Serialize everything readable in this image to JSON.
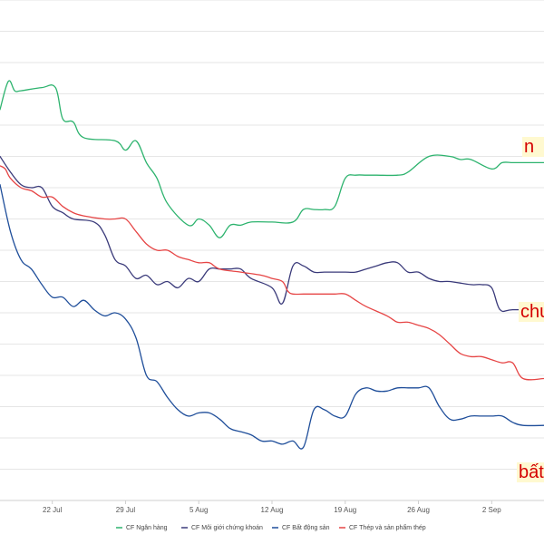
{
  "chart_data": {
    "type": "line",
    "x_tick_labels": [
      "22 Jul",
      "29 Jul",
      "5 Aug",
      "12 Aug",
      "19 Aug",
      "26 Aug",
      "2 Sep"
    ],
    "x_tick_days": [
      22,
      29,
      36,
      43,
      50,
      57,
      64
    ],
    "xlim": [
      17,
      69
    ],
    "ylim": [
      0,
      16
    ],
    "grid": true,
    "legend_position": "bottom",
    "series": [
      {
        "name": "CF Ngân hàng",
        "color": "#2db36e",
        "end_label": "n",
        "x": [
          17,
          17.8,
          18.4,
          19,
          21,
          22.3,
          23,
          24,
          25,
          28,
          29,
          30,
          31,
          32,
          33,
          35,
          36,
          37,
          38,
          39,
          40,
          41,
          43,
          45,
          46,
          47,
          48,
          49,
          50,
          51,
          52,
          53,
          55,
          56,
          58,
          60,
          61,
          62,
          64,
          65,
          66,
          67,
          69
        ],
        "y": [
          12.5,
          13.4,
          13.1,
          13.1,
          13.2,
          13.2,
          12.2,
          12.1,
          11.6,
          11.5,
          11.2,
          11.5,
          10.8,
          10.3,
          9.5,
          8.8,
          9.0,
          8.8,
          8.4,
          8.8,
          8.8,
          8.9,
          8.9,
          8.9,
          9.3,
          9.3,
          9.3,
          9.4,
          10.3,
          10.4,
          10.4,
          10.4,
          10.4,
          10.5,
          11.0,
          11.0,
          10.9,
          10.9,
          10.6,
          10.8,
          10.8,
          10.8,
          10.8
        ]
      },
      {
        "name": "CF Môi giới chứng khoán",
        "color": "#3a3a7a",
        "end_label": "chu",
        "x": [
          17,
          18,
          19,
          20,
          21,
          22,
          23,
          24,
          26,
          27,
          28,
          29,
          30,
          31,
          32,
          33,
          34,
          35,
          36,
          37,
          38,
          39,
          40,
          41,
          43,
          44,
          45,
          46,
          47,
          48,
          49,
          50,
          51,
          52,
          53,
          54,
          55,
          56,
          57,
          58,
          59,
          60,
          62,
          63,
          64,
          64.8,
          66,
          69
        ],
        "y": [
          11.0,
          10.5,
          10.1,
          10.0,
          10.0,
          9.4,
          9.2,
          9.0,
          8.9,
          8.5,
          7.7,
          7.5,
          7.1,
          7.2,
          6.9,
          7.0,
          6.8,
          7.1,
          7.0,
          7.4,
          7.4,
          7.4,
          7.4,
          7.1,
          6.8,
          6.3,
          7.5,
          7.5,
          7.3,
          7.3,
          7.3,
          7.3,
          7.3,
          7.4,
          7.5,
          7.6,
          7.6,
          7.3,
          7.3,
          7.1,
          7.0,
          7.0,
          6.9,
          6.9,
          6.8,
          6.1,
          6.1,
          6.1
        ]
      },
      {
        "name": "CF Bất động sản",
        "color": "#1f4e9a",
        "end_label": "bất",
        "x": [
          17,
          18,
          19,
          20,
          21,
          22,
          23,
          24,
          25,
          26,
          27,
          28,
          29,
          30,
          31,
          32,
          33,
          34,
          35,
          36,
          37,
          38,
          39,
          40,
          41,
          42,
          43,
          44,
          45,
          46,
          47,
          48,
          49,
          50,
          51,
          52,
          53,
          54,
          55,
          56,
          57,
          58,
          59,
          60,
          61,
          62,
          63,
          64,
          65,
          66,
          67,
          69
        ],
        "y": [
          10.1,
          8.6,
          7.7,
          7.4,
          6.9,
          6.5,
          6.5,
          6.2,
          6.4,
          6.1,
          5.9,
          6.0,
          5.8,
          5.2,
          4.0,
          3.8,
          3.3,
          2.9,
          2.7,
          2.8,
          2.8,
          2.6,
          2.3,
          2.2,
          2.1,
          1.9,
          1.9,
          1.8,
          1.9,
          1.7,
          2.9,
          2.9,
          2.7,
          2.7,
          3.4,
          3.6,
          3.5,
          3.5,
          3.6,
          3.6,
          3.6,
          3.6,
          3.0,
          2.6,
          2.6,
          2.7,
          2.7,
          2.7,
          2.7,
          2.5,
          2.4,
          2.4
        ]
      },
      {
        "name": "CF Thép và sản phẩm thép",
        "color": "#e64545",
        "end_label": "",
        "x": [
          17,
          17.5,
          18,
          19,
          20,
          21,
          22,
          23,
          24,
          25,
          27,
          28,
          29,
          30,
          31,
          32,
          33,
          34,
          35,
          36,
          37,
          38,
          40,
          42,
          43,
          44,
          44.5,
          45,
          46,
          48,
          49,
          50,
          51,
          52,
          54,
          55,
          56,
          57,
          58,
          59,
          60,
          61,
          62,
          63,
          64,
          65,
          66,
          67,
          69
        ],
        "y": [
          10.7,
          10.6,
          10.3,
          10.0,
          9.9,
          9.7,
          9.7,
          9.4,
          9.2,
          9.1,
          9.0,
          9.0,
          9.0,
          8.6,
          8.2,
          8.0,
          8.0,
          7.8,
          7.7,
          7.6,
          7.6,
          7.4,
          7.3,
          7.2,
          7.1,
          7.0,
          6.7,
          6.6,
          6.6,
          6.6,
          6.6,
          6.6,
          6.4,
          6.2,
          5.9,
          5.7,
          5.7,
          5.6,
          5.5,
          5.3,
          5.0,
          4.7,
          4.6,
          4.6,
          4.5,
          4.4,
          4.4,
          3.9,
          3.9
        ]
      }
    ]
  }
}
